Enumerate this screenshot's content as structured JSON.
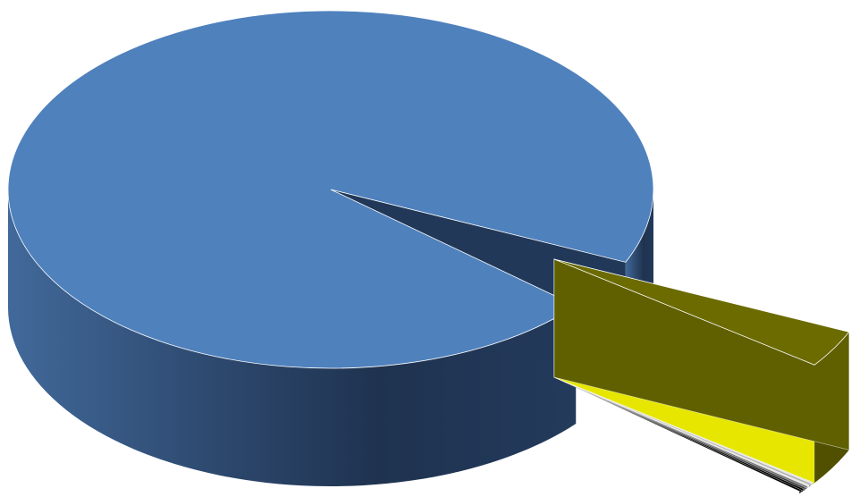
{
  "chart_data": {
    "type": "pie",
    "style": "3d-exploded",
    "title": "",
    "legend": "none",
    "data_labels": "none",
    "slices": [
      {
        "value": 95.4,
        "color": "#4f81bd",
        "exploded": false
      },
      {
        "value": 3.4,
        "color": "#6b6b00",
        "exploded": true
      },
      {
        "value": 0.15,
        "color": "#ffff00",
        "exploded": true
      },
      {
        "value": 0.15,
        "color": "#ffffff",
        "exploded": true
      },
      {
        "value": 0.15,
        "color": "#c0c0c0",
        "exploded": true
      },
      {
        "value": 0.15,
        "color": "#ffffff",
        "exploded": true
      },
      {
        "value": 0.15,
        "color": "#808080",
        "exploded": true
      },
      {
        "value": 0.15,
        "color": "#404040",
        "exploded": true
      },
      {
        "value": 0.15,
        "color": "#000000",
        "exploded": true
      },
      {
        "value": 0.15,
        "color": "#000000",
        "exploded": true
      }
    ]
  }
}
